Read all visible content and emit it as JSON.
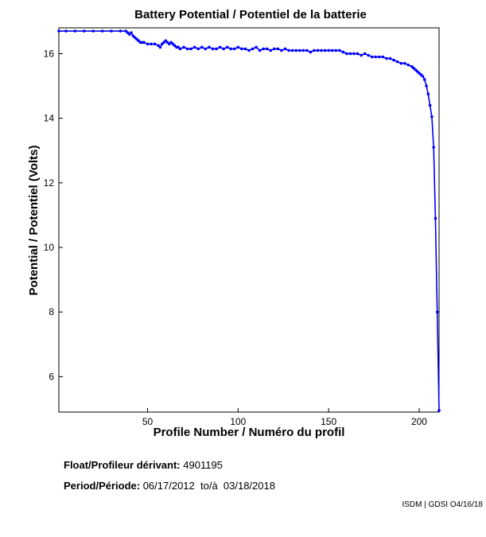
{
  "chart_data": {
    "type": "line",
    "title": "Battery Potential / Potentiel de la batterie",
    "xlabel": "Profile Number / Numéro du profil",
    "ylabel": "Potential / Potentiel (Volts)",
    "xlim": [
      1,
      211
    ],
    "ylim": [
      4.9,
      16.8
    ],
    "xticks": [
      50,
      100,
      150,
      200
    ],
    "yticks": [
      6,
      8,
      10,
      12,
      14,
      16
    ],
    "grid": false,
    "legend": "none",
    "color": "#0000ff",
    "series": [
      {
        "x": [
          1,
          5,
          10,
          15,
          20,
          25,
          30,
          35,
          38,
          39,
          40,
          41,
          42,
          43,
          44,
          45,
          46,
          47,
          48,
          50,
          52,
          54,
          56,
          57,
          58,
          59,
          60,
          61,
          62,
          63,
          64,
          65,
          66,
          67,
          68,
          70,
          72,
          74,
          76,
          78,
          80,
          82,
          84,
          86,
          88,
          90,
          92,
          94,
          96,
          98,
          100,
          102,
          104,
          106,
          108,
          110,
          112,
          114,
          116,
          118,
          120,
          122,
          124,
          126,
          128,
          130,
          132,
          134,
          136,
          138,
          140,
          142,
          144,
          146,
          148,
          150,
          152,
          154,
          156,
          158,
          160,
          162,
          164,
          166,
          168,
          170,
          172,
          174,
          176,
          178,
          180,
          182,
          184,
          186,
          188,
          190,
          192,
          194,
          196,
          197,
          198,
          199,
          200,
          201,
          202,
          203,
          204,
          205,
          206,
          207,
          208,
          209,
          210,
          211
        ],
        "values": [
          16.7,
          16.7,
          16.7,
          16.7,
          16.7,
          16.7,
          16.7,
          16.7,
          16.7,
          16.65,
          16.6,
          16.65,
          16.55,
          16.5,
          16.45,
          16.4,
          16.35,
          16.35,
          16.35,
          16.3,
          16.3,
          16.3,
          16.25,
          16.2,
          16.3,
          16.35,
          16.4,
          16.35,
          16.3,
          16.35,
          16.3,
          16.25,
          16.2,
          16.2,
          16.15,
          16.2,
          16.15,
          16.15,
          16.2,
          16.15,
          16.2,
          16.15,
          16.2,
          16.15,
          16.15,
          16.2,
          16.15,
          16.2,
          16.15,
          16.15,
          16.2,
          16.15,
          16.15,
          16.1,
          16.15,
          16.2,
          16.1,
          16.15,
          16.15,
          16.1,
          16.15,
          16.15,
          16.1,
          16.15,
          16.1,
          16.1,
          16.1,
          16.1,
          16.1,
          16.1,
          16.05,
          16.1,
          16.1,
          16.1,
          16.1,
          16.1,
          16.1,
          16.1,
          16.1,
          16.05,
          16.0,
          16.0,
          16.0,
          16.0,
          15.95,
          16.0,
          15.95,
          15.9,
          15.9,
          15.9,
          15.9,
          15.85,
          15.85,
          15.8,
          15.75,
          15.7,
          15.7,
          15.65,
          15.6,
          15.55,
          15.5,
          15.45,
          15.4,
          15.35,
          15.3,
          15.2,
          15.0,
          14.75,
          14.4,
          14.05,
          13.1,
          10.9,
          8.0,
          4.95
        ]
      }
    ]
  },
  "info": {
    "float_label": "Float/Profileur dérivant:",
    "float_value": "4901195",
    "period_label": "Period/Période:",
    "period_value": "06/17/2012  to/à  03/18/2018"
  },
  "credit": "ISDM | GDSI O4/16/18"
}
